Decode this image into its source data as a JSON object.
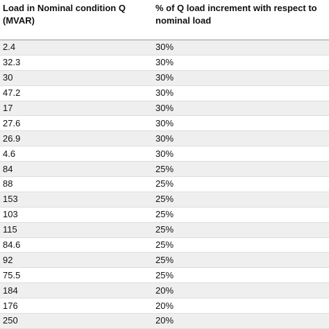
{
  "table": {
    "header": [
      "Load in Nominal condition Q (MVAR)",
      "% of Q load increment with respect to nominal load"
    ],
    "rows": [
      [
        "2.4",
        "30%"
      ],
      [
        "32.3",
        "30%"
      ],
      [
        "30",
        "30%"
      ],
      [
        "47.2",
        "30%"
      ],
      [
        "17",
        "30%"
      ],
      [
        "27.6",
        "30%"
      ],
      [
        "26.9",
        "30%"
      ],
      [
        "4.6",
        "30%"
      ],
      [
        "84",
        "25%"
      ],
      [
        "88",
        "25%"
      ],
      [
        "153",
        "25%"
      ],
      [
        "103",
        "25%"
      ],
      [
        "115",
        "25%"
      ],
      [
        "84.6",
        "25%"
      ],
      [
        "92",
        "25%"
      ],
      [
        "75.5",
        "25%"
      ],
      [
        "184",
        "20%"
      ],
      [
        "176",
        "20%"
      ],
      [
        "250",
        "20%"
      ]
    ]
  }
}
